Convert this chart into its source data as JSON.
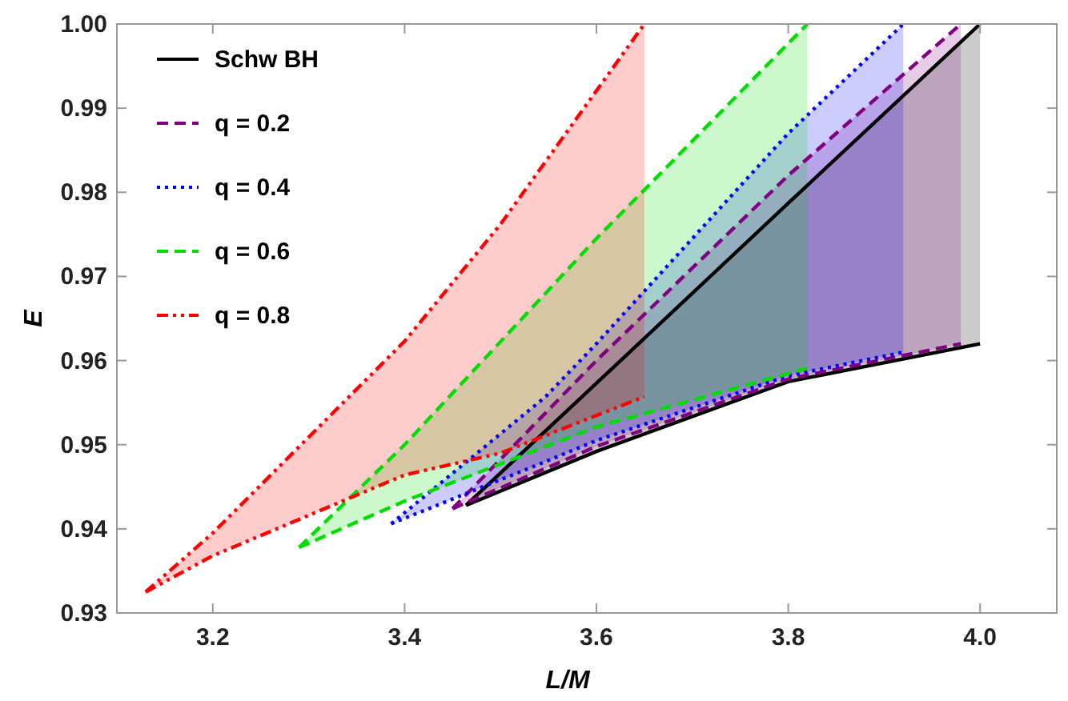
{
  "chart_data": {
    "type": "line",
    "xlabel": "L/M",
    "ylabel": "E",
    "xlim": [
      3.1,
      4.08
    ],
    "ylim": [
      0.93,
      1.0
    ],
    "xticks": [
      3.2,
      3.4,
      3.6,
      3.8,
      {
        "value": 4.0,
        "label": "4.0"
      }
    ],
    "yticks": [
      0.93,
      0.94,
      0.95,
      0.96,
      0.97,
      0.98,
      0.99,
      {
        "value": 1.0,
        "label": "1.00"
      }
    ],
    "grid": false,
    "legend": "top left",
    "marker": "none",
    "series": [
      {
        "name": "Schw BH",
        "color": "#000000",
        "line_style": "solid",
        "x": [
          3.464,
          3.6,
          3.8,
          4.0
        ],
        "values": [
          0.9428,
          0.9573,
          0.9787,
          1.0
        ],
        "upper": [
          0.9428,
          0.9573,
          0.9787,
          1.0
        ],
        "lower": [
          0.9428,
          0.9492,
          0.9575,
          0.962
        ]
      },
      {
        "color": "#000000",
        "line_style": "solid",
        "x": [
          3.464,
          3.6,
          3.8,
          4.0
        ],
        "values": [
          0.9428,
          0.9492,
          0.9575,
          0.962
        ]
      },
      {
        "name": "q = 0.2",
        "color": "#800080",
        "line_style": "dashed",
        "x": [
          3.45,
          3.6,
          3.8,
          3.98
        ],
        "values": [
          0.9424,
          0.96,
          0.982,
          1.0
        ],
        "upper": [
          0.9424,
          0.96,
          0.982,
          1.0
        ],
        "lower": [
          0.9424,
          0.9498,
          0.9578,
          0.962
        ]
      },
      {
        "color": "#800080",
        "line_style": "dashed",
        "x": [
          3.45,
          3.6,
          3.8,
          3.98
        ],
        "values": [
          0.9424,
          0.9498,
          0.9578,
          0.962
        ]
      },
      {
        "name": "q = 0.4",
        "color": "#0000ff",
        "line_style": "dotted",
        "x": [
          3.386,
          3.547,
          3.6,
          3.8,
          3.92
        ],
        "values": [
          0.9406,
          0.9557,
          0.962,
          0.987,
          1.0
        ],
        "upper": [
          0.9406,
          0.9557,
          0.962,
          0.987,
          1.0
        ],
        "lower": [
          0.9406,
          0.948,
          0.9505,
          0.9582,
          0.961
        ]
      },
      {
        "color": "#0000ff",
        "line_style": "dotted",
        "x": [
          3.386,
          3.547,
          3.6,
          3.8,
          3.92
        ],
        "values": [
          0.9406,
          0.948,
          0.9505,
          0.9582,
          0.961
        ]
      },
      {
        "name": "q = 0.6",
        "color": "#00dd00",
        "line_style": "dashed",
        "x": [
          3.29,
          3.4,
          3.6,
          3.82
        ],
        "values": [
          0.9378,
          0.95,
          0.9745,
          1.0
        ],
        "upper": [
          0.9378,
          0.95,
          0.9745,
          1.0
        ],
        "lower": [
          0.9378,
          0.9433,
          0.9521,
          0.9591
        ]
      },
      {
        "color": "#00dd00",
        "line_style": "dashed",
        "x": [
          3.29,
          3.4,
          3.6,
          3.82
        ],
        "values": [
          0.9378,
          0.9433,
          0.9521,
          0.9591
        ]
      },
      {
        "name": "q = 0.8",
        "color": "#ff0000",
        "line_style": "dashdot",
        "x": [
          3.13,
          3.2,
          3.4,
          3.5,
          3.65
        ],
        "values": [
          0.9325,
          0.9395,
          0.9623,
          0.9762,
          1.0
        ],
        "upper": [
          0.9325,
          0.9395,
          0.9623,
          0.9762,
          1.0
        ],
        "lower": [
          0.9325,
          0.9368,
          0.9464,
          0.949,
          0.9557
        ]
      },
      {
        "color": "#ff0000",
        "line_style": "dashdot",
        "x": [
          3.13,
          3.2,
          3.4,
          3.5,
          3.65
        ],
        "values": [
          0.9325,
          0.9368,
          0.9464,
          0.949,
          0.9557
        ]
      }
    ]
  }
}
